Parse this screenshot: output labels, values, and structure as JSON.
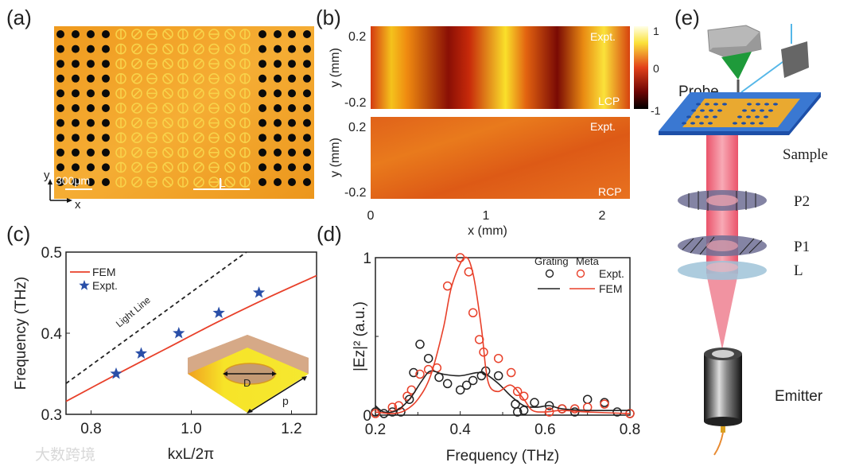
{
  "panels": {
    "a": {
      "label": "(a)",
      "scale_bar": "300μm",
      "period_label": "L",
      "axis_x": "x",
      "axis_y": "y"
    },
    "b": {
      "label": "(b)",
      "ylabel": "y (mm)",
      "xlabel": "x (mm)",
      "yticks": [
        "0.2",
        "-0.2"
      ],
      "xticks": [
        "0",
        "1",
        "2"
      ],
      "colorbar_ticks": [
        "1",
        "0",
        "-1"
      ],
      "top_map": {
        "tag": "Expt.",
        "pol": "LCP"
      },
      "bottom_map": {
        "tag": "Expt.",
        "pol": "RCP"
      }
    },
    "c": {
      "label": "(c)",
      "inset_labels": {
        "diameter": "D",
        "period": "p"
      },
      "light_line_label": "Light Line"
    },
    "d": {
      "label": "(d)"
    },
    "e": {
      "label": "(e)",
      "labels": {
        "probe": "Probe",
        "sample": "Sample",
        "p2": "P2",
        "p1": "P1",
        "lens": "L",
        "emitter": "Emitter"
      }
    }
  },
  "watermark": "大数跨境",
  "colors": {
    "fem": "#e8402a",
    "expt_star": "#2a4fa8",
    "grating": "#222222",
    "meta": "#e8402a",
    "gold": "#f2a325"
  },
  "chart_data": [
    {
      "type": "line",
      "panel": "c",
      "xlabel": "kxL/2π",
      "ylabel": "Frequency (THz)",
      "xlim": [
        0.75,
        1.25
      ],
      "ylim": [
        0.3,
        0.5
      ],
      "xticks": [
        "0.8",
        "1.0",
        "1.2"
      ],
      "yticks": [
        "0.3",
        "0.4",
        "0.5"
      ],
      "legend": [
        "FEM",
        "Expt."
      ],
      "legend_position": "top-left",
      "series": [
        {
          "name": "FEM",
          "style": "line",
          "x": [
            0.75,
            0.85,
            0.95,
            1.05,
            1.15,
            1.25
          ],
          "y": [
            0.316,
            0.349,
            0.381,
            0.413,
            0.443,
            0.471
          ]
        },
        {
          "name": "Expt.",
          "style": "star",
          "x": [
            0.85,
            0.9,
            0.975,
            1.055,
            1.135
          ],
          "y": [
            0.35,
            0.375,
            0.4,
            0.425,
            0.45
          ]
        },
        {
          "name": "Light Line",
          "style": "dashed",
          "x": [
            0.75,
            1.11
          ],
          "y": [
            0.338,
            0.5
          ]
        }
      ]
    },
    {
      "type": "line",
      "panel": "d",
      "xlabel": "Frequency (THz)",
      "ylabel": "|Ez|² (a.u.)",
      "xlim": [
        0.2,
        0.8
      ],
      "ylim": [
        0,
        1
      ],
      "xticks": [
        "0.2",
        "0.4",
        "0.6",
        "0.8"
      ],
      "yticks": [
        "0",
        "1"
      ],
      "legend_headers": [
        "Grating",
        "Meta"
      ],
      "legend_rows": [
        "Expt.",
        "FEM"
      ],
      "legend_position": "top-right",
      "series": [
        {
          "name": "Grating Expt.",
          "style": "circle",
          "color": "#222222",
          "x": [
            0.2,
            0.22,
            0.24,
            0.26,
            0.28,
            0.29,
            0.305,
            0.325,
            0.35,
            0.37,
            0.4,
            0.415,
            0.43,
            0.45,
            0.46,
            0.49,
            0.53,
            0.535,
            0.55,
            0.575,
            0.61,
            0.64,
            0.67,
            0.7,
            0.74,
            0.77,
            0.8
          ],
          "y": [
            0.02,
            0.01,
            0.02,
            0.02,
            0.1,
            0.27,
            0.45,
            0.36,
            0.24,
            0.2,
            0.16,
            0.19,
            0.22,
            0.25,
            0.28,
            0.25,
            0.07,
            0.02,
            0.03,
            0.08,
            0.06,
            0.04,
            0.02,
            0.1,
            0.08,
            0.02,
            0.01
          ]
        },
        {
          "name": "Meta Expt.",
          "style": "circle",
          "color": "#e8402a",
          "x": [
            0.2,
            0.24,
            0.255,
            0.275,
            0.285,
            0.305,
            0.325,
            0.345,
            0.37,
            0.4,
            0.42,
            0.43,
            0.445,
            0.455,
            0.49,
            0.52,
            0.535,
            0.55,
            0.61,
            0.64,
            0.67,
            0.7,
            0.74,
            0.8
          ],
          "y": [
            0.01,
            0.05,
            0.06,
            0.12,
            0.16,
            0.26,
            0.29,
            0.3,
            0.82,
            1.0,
            0.91,
            0.65,
            0.48,
            0.4,
            0.36,
            0.27,
            0.15,
            0.12,
            0.02,
            0.04,
            0.04,
            0.05,
            0.07,
            0.01
          ]
        },
        {
          "name": "Grating FEM",
          "style": "line",
          "color": "#222222",
          "x": [
            0.2,
            0.22,
            0.25,
            0.28,
            0.31,
            0.33,
            0.36,
            0.4,
            0.44,
            0.46,
            0.49,
            0.52,
            0.55,
            0.58,
            0.61,
            0.64,
            0.7,
            0.8
          ],
          "y": [
            0.06,
            0.02,
            0.03,
            0.1,
            0.22,
            0.28,
            0.26,
            0.25,
            0.27,
            0.26,
            0.2,
            0.12,
            0.06,
            0.05,
            0.06,
            0.04,
            0.03,
            0.03
          ]
        },
        {
          "name": "Meta FEM",
          "style": "line",
          "color": "#e8402a",
          "x": [
            0.2,
            0.24,
            0.27,
            0.3,
            0.33,
            0.36,
            0.38,
            0.41,
            0.43,
            0.45,
            0.46,
            0.47,
            0.49,
            0.52,
            0.55,
            0.57,
            0.6,
            0.64,
            0.7,
            0.8
          ],
          "y": [
            0.02,
            0.01,
            0.03,
            0.1,
            0.25,
            0.55,
            0.82,
            1.0,
            0.9,
            0.55,
            0.3,
            0.18,
            0.15,
            0.19,
            0.1,
            0.03,
            0.02,
            0.03,
            0.02,
            0.01
          ]
        }
      ]
    }
  ]
}
